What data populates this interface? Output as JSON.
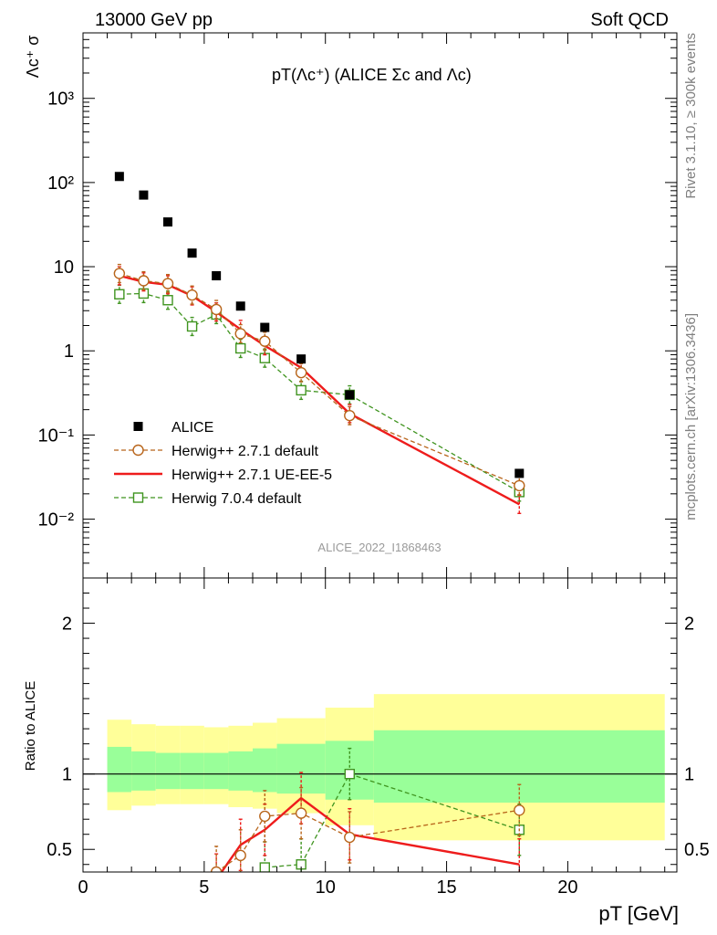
{
  "header": {
    "energy": "13000 GeV pp",
    "category": "Soft QCD"
  },
  "side_text": {
    "rivet": "Rivet 3.1.10, ≥ 300k events",
    "mcplots": "mcplots.cern.ch [arXiv:1306.3436]"
  },
  "chart_data": [
    {
      "type": "scatter",
      "panel": "main",
      "title": "pT(Λc⁺) (ALICE Σc and Λc)",
      "ylabel": "Λc⁺ σ",
      "watermark": "ALICE_2022_I1868463",
      "yscale": "log",
      "xlim": [
        0,
        24.5
      ],
      "ylim": [
        0.002,
        6000
      ],
      "grid": false,
      "legend_position": "center-left",
      "ytick_labels": [
        "10⁻²",
        "10⁻¹",
        "1",
        "10",
        "10²",
        "10³"
      ],
      "series": [
        {
          "name": "ALICE",
          "color": "#000000",
          "marker": "square-filled",
          "x": [
            1.5,
            2.5,
            3.5,
            4.5,
            5.5,
            6.5,
            7.5,
            9,
            11,
            18
          ],
          "y": [
            118,
            71,
            34,
            14.5,
            7.8,
            3.4,
            1.9,
            0.8,
            0.3,
            0.035
          ]
        },
        {
          "name": "Herwig++ 2.7.1 default",
          "color": "#b8651b",
          "marker": "circle-open",
          "line": "dashed",
          "x": [
            1.5,
            2.5,
            3.5,
            4.5,
            5.5,
            6.5,
            7.5,
            9,
            11,
            18
          ],
          "y": [
            8.3,
            6.8,
            6.3,
            4.6,
            3.1,
            1.6,
            1.3,
            0.55,
            0.17,
            0.025
          ]
        },
        {
          "name": "Herwig++ 2.7.1 UE-EE-5",
          "color": "#ee1c1c",
          "marker": "none",
          "line": "solid",
          "x": [
            1.5,
            2.5,
            3.5,
            4.5,
            5.5,
            6.5,
            7.5,
            9,
            11,
            18
          ],
          "y": [
            7.8,
            6.6,
            6.1,
            4.5,
            2.9,
            1.8,
            1.15,
            0.63,
            0.18,
            0.015
          ]
        },
        {
          "name": "Herwig 7.0.4 default",
          "color": "#3f941f",
          "marker": "square-open",
          "line": "dashed",
          "x": [
            1.5,
            2.5,
            3.5,
            4.5,
            5.5,
            6.5,
            7.5,
            9,
            11,
            18
          ],
          "y": [
            4.7,
            4.8,
            4.0,
            1.95,
            2.7,
            1.07,
            0.82,
            0.34,
            0.3,
            0.021
          ]
        }
      ]
    },
    {
      "type": "line",
      "panel": "ratio",
      "ylabel": "Ratio to ALICE",
      "xlabel": "pT [GeV]",
      "xlim": [
        0,
        24.5
      ],
      "ylim": [
        0.35,
        2.3
      ],
      "xticks": [
        0,
        5,
        10,
        15,
        20
      ],
      "yticks": [
        0.5,
        1,
        2
      ],
      "grid": false,
      "bands": {
        "x_edges": [
          1,
          2,
          3,
          4,
          5,
          6,
          7,
          8,
          10,
          12,
          24
        ],
        "yellow_low": [
          0.76,
          0.79,
          0.8,
          0.8,
          0.8,
          0.78,
          0.77,
          0.74,
          0.66,
          0.56
        ],
        "yellow_high": [
          1.36,
          1.33,
          1.32,
          1.32,
          1.31,
          1.32,
          1.34,
          1.37,
          1.44,
          1.53
        ],
        "green_low": [
          0.88,
          0.89,
          0.9,
          0.9,
          0.9,
          0.89,
          0.88,
          0.87,
          0.83,
          0.81
        ],
        "green_high": [
          1.18,
          1.15,
          1.14,
          1.14,
          1.14,
          1.15,
          1.17,
          1.2,
          1.22,
          1.29
        ]
      },
      "series": [
        {
          "name": "Herwig++ 2.7.1 default",
          "color": "#b8651b",
          "marker": "circle-open",
          "line": "dashed",
          "x": [
            5.5,
            6.5,
            7.5,
            9,
            11,
            18
          ],
          "y": [
            0.35,
            0.46,
            0.72,
            0.74,
            0.58,
            0.76
          ]
        },
        {
          "name": "Herwig++ 2.7.1 UE-EE-5",
          "color": "#ee1c1c",
          "marker": "none",
          "line": "solid",
          "x": [
            5.5,
            6.5,
            7.5,
            9,
            11,
            18
          ],
          "y": [
            0.3,
            0.53,
            0.63,
            0.84,
            0.6,
            0.4
          ]
        },
        {
          "name": "Herwig 7.0.4 default",
          "color": "#3f941f",
          "marker": "square-open",
          "line": "dashed",
          "x": [
            7.5,
            9,
            11,
            18
          ],
          "y": [
            0.38,
            0.4,
            1.0,
            0.63
          ]
        }
      ]
    }
  ]
}
